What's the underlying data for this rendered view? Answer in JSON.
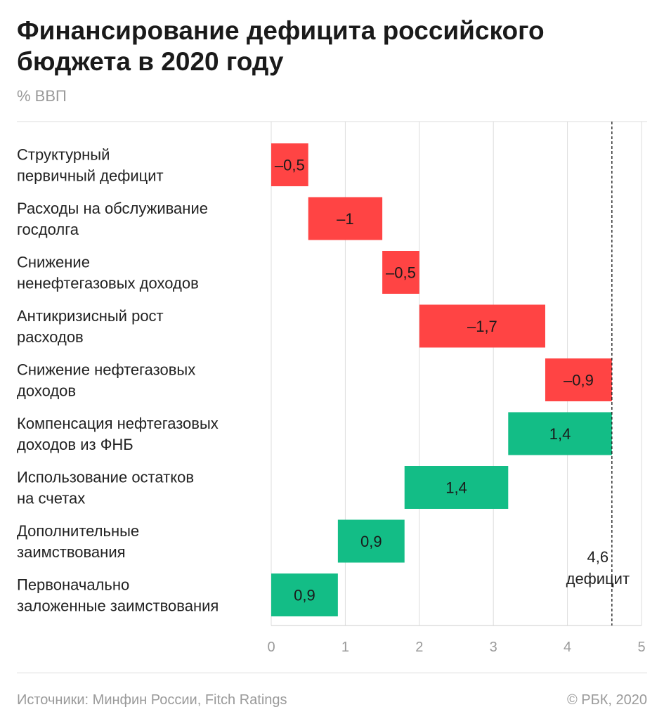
{
  "title": "Финансирование дефицита российского бюджета в 2020 году",
  "subtitle": "% ВВП",
  "source": "Источники: Минфин России, Fitch Ratings",
  "copyright": "© РБК, 2020",
  "colors": {
    "negative": "#ff4444",
    "positive": "#13bd86",
    "grid": "#dddddd",
    "axis": "#cccccc"
  },
  "chart_data": {
    "type": "bar",
    "subtype": "waterfall",
    "orientation": "horizontal",
    "xlim": [
      0,
      5
    ],
    "xticks": [
      0,
      1,
      2,
      3,
      4,
      5
    ],
    "xtick_labels": [
      "0",
      "1",
      "2",
      "3",
      "4",
      "5"
    ],
    "grid": true,
    "categories": [
      [
        "Структурный",
        "первичный дефицит"
      ],
      [
        "Расходы на обслуживание",
        "госдолга"
      ],
      [
        "Снижение",
        "ненефтегазовых доходов"
      ],
      [
        "Антикризисный рост",
        "расходов"
      ],
      [
        "Снижение нефтегазовых",
        "доходов"
      ],
      [
        "Компенсация нефтегазовых",
        "доходов из ФНБ"
      ],
      [
        "Использование остатков",
        "на счетах"
      ],
      [
        "Дополнительные",
        "заимствования"
      ],
      [
        "Первоначально",
        "заложенные заимствования"
      ]
    ],
    "values": [
      -0.5,
      -1,
      -0.5,
      -1.7,
      -0.9,
      1.4,
      1.4,
      0.9,
      0.9
    ],
    "value_labels": [
      "–0,5",
      "–1",
      "–0,5",
      "–1,7",
      "–0,9",
      "1,4",
      "1,4",
      "0,9",
      "0,9"
    ],
    "bar_start": [
      0,
      0.5,
      1.5,
      2.0,
      3.7,
      3.2,
      1.8,
      0.9,
      0
    ],
    "bar_end": [
      0.5,
      1.5,
      2.0,
      3.7,
      4.6,
      4.6,
      3.2,
      1.8,
      0.9
    ],
    "total": {
      "value": 4.6,
      "label_value": "4,6",
      "label_text": "дефицит"
    }
  }
}
